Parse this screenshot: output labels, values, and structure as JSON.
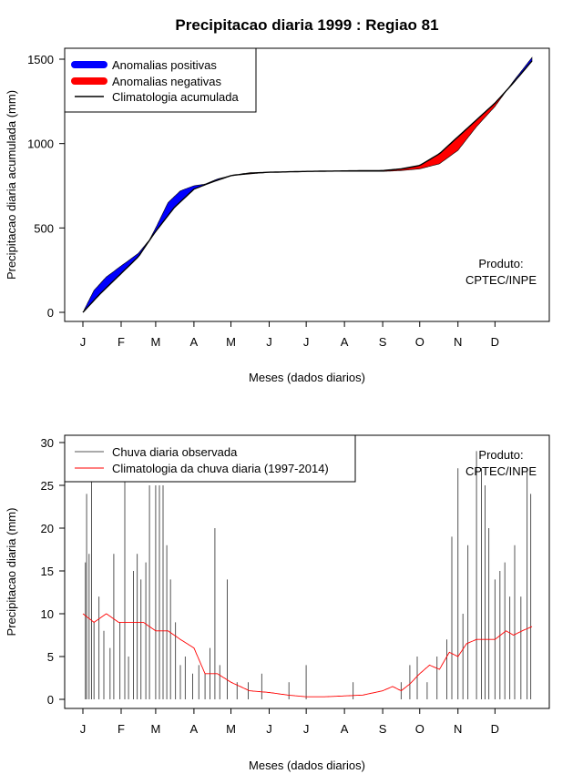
{
  "title": "Precipitacao diaria 1999 : Regiao 81",
  "chart_data": [
    {
      "type": "area",
      "name": "accumulated",
      "ylabel": "Precipitacao diaria acumulada (mm)",
      "xlabel": "Meses (dados diarios)",
      "xlim": [
        1,
        365
      ],
      "ylim": [
        0,
        1500
      ],
      "yticks": [
        0,
        500,
        1000,
        1500
      ],
      "month_ticks": [
        "J",
        "F",
        "M",
        "A",
        "M",
        "J",
        "J",
        "A",
        "S",
        "O",
        "N",
        "D"
      ],
      "month_start_days": [
        1,
        32,
        60,
        91,
        121,
        152,
        182,
        213,
        244,
        274,
        305,
        335
      ],
      "legend": {
        "position": "top-left",
        "entries": [
          "Anomalias positivas",
          "Anomalias negativas",
          "Climatologia acumulada"
        ]
      },
      "colors": {
        "positive": "#0000ff",
        "negative": "#ff0000",
        "climatology": "#000000"
      },
      "annotation": [
        "Produto:",
        "CPTEC/INPE"
      ],
      "climatology_points": [
        [
          1,
          0
        ],
        [
          15,
          110
        ],
        [
          32,
          230
        ],
        [
          46,
          330
        ],
        [
          60,
          480
        ],
        [
          75,
          620
        ],
        [
          91,
          730
        ],
        [
          105,
          770
        ],
        [
          121,
          810
        ],
        [
          136,
          825
        ],
        [
          152,
          830
        ],
        [
          182,
          835
        ],
        [
          213,
          838
        ],
        [
          244,
          840
        ],
        [
          259,
          850
        ],
        [
          274,
          870
        ],
        [
          290,
          940
        ],
        [
          305,
          1040
        ],
        [
          320,
          1140
        ],
        [
          335,
          1240
        ],
        [
          350,
          1360
        ],
        [
          365,
          1490
        ]
      ],
      "observed_points": [
        [
          1,
          0
        ],
        [
          10,
          130
        ],
        [
          20,
          210
        ],
        [
          32,
          275
        ],
        [
          46,
          350
        ],
        [
          55,
          430
        ],
        [
          60,
          500
        ],
        [
          70,
          650
        ],
        [
          80,
          720
        ],
        [
          91,
          750
        ],
        [
          100,
          760
        ],
        [
          110,
          790
        ],
        [
          121,
          810
        ],
        [
          152,
          830
        ],
        [
          182,
          835
        ],
        [
          213,
          835
        ],
        [
          244,
          835
        ],
        [
          259,
          840
        ],
        [
          274,
          850
        ],
        [
          290,
          880
        ],
        [
          305,
          960
        ],
        [
          320,
          1100
        ],
        [
          335,
          1220
        ],
        [
          350,
          1370
        ],
        [
          365,
          1510
        ]
      ]
    },
    {
      "type": "bar",
      "name": "daily",
      "ylabel": "Precipitacao diaria (mm)",
      "xlabel": "Meses (dados diarios)",
      "xlim": [
        1,
        365
      ],
      "ylim": [
        0,
        30
      ],
      "yticks": [
        0,
        5,
        10,
        15,
        20,
        25,
        30
      ],
      "month_ticks": [
        "J",
        "F",
        "M",
        "A",
        "M",
        "J",
        "J",
        "A",
        "S",
        "O",
        "N",
        "D"
      ],
      "month_start_days": [
        1,
        32,
        60,
        91,
        121,
        152,
        182,
        213,
        244,
        274,
        305,
        335
      ],
      "legend": {
        "position": "top-left",
        "entries": [
          "Chuva diaria observada",
          "Climatologia da chuva diaria (1997-2014)"
        ]
      },
      "colors": {
        "observed": "#555555",
        "climatology": "#ff0000"
      },
      "annotation": [
        "Produto:",
        "CPTEC/INPE"
      ],
      "observed_peaks": [
        [
          3,
          16
        ],
        [
          4,
          24
        ],
        [
          6,
          17
        ],
        [
          8,
          28
        ],
        [
          10,
          9
        ],
        [
          14,
          12
        ],
        [
          18,
          8
        ],
        [
          23,
          6
        ],
        [
          26,
          17
        ],
        [
          31,
          9
        ],
        [
          35,
          28
        ],
        [
          38,
          5
        ],
        [
          42,
          15
        ],
        [
          45,
          17
        ],
        [
          48,
          14
        ],
        [
          52,
          16
        ],
        [
          55,
          25
        ],
        [
          60,
          25
        ],
        [
          63,
          25
        ],
        [
          66,
          25
        ],
        [
          69,
          18
        ],
        [
          72,
          14
        ],
        [
          76,
          9
        ],
        [
          80,
          4
        ],
        [
          84,
          5
        ],
        [
          90,
          3
        ],
        [
          95,
          4
        ],
        [
          100,
          3
        ],
        [
          104,
          6
        ],
        [
          108,
          20
        ],
        [
          112,
          4
        ],
        [
          118,
          14
        ],
        [
          126,
          2
        ],
        [
          135,
          2
        ],
        [
          146,
          3
        ],
        [
          168,
          2
        ],
        [
          182,
          4
        ],
        [
          220,
          2
        ],
        [
          259,
          2
        ],
        [
          266,
          4
        ],
        [
          272,
          5
        ],
        [
          280,
          2
        ],
        [
          288,
          5
        ],
        [
          296,
          7
        ],
        [
          300,
          19
        ],
        [
          305,
          27
        ],
        [
          309,
          10
        ],
        [
          313,
          18
        ],
        [
          320,
          29
        ],
        [
          324,
          27
        ],
        [
          327,
          25
        ],
        [
          330,
          20
        ],
        [
          335,
          14
        ],
        [
          339,
          15
        ],
        [
          343,
          16
        ],
        [
          347,
          12
        ],
        [
          351,
          18
        ],
        [
          356,
          12
        ],
        [
          361,
          27
        ],
        [
          364,
          24
        ]
      ],
      "climatology_points": [
        [
          1,
          10
        ],
        [
          10,
          9
        ],
        [
          20,
          10
        ],
        [
          30,
          9
        ],
        [
          40,
          9
        ],
        [
          50,
          9
        ],
        [
          60,
          8
        ],
        [
          70,
          8
        ],
        [
          80,
          7
        ],
        [
          91,
          6
        ],
        [
          100,
          3
        ],
        [
          110,
          3
        ],
        [
          121,
          2
        ],
        [
          136,
          1
        ],
        [
          152,
          0.8
        ],
        [
          167,
          0.5
        ],
        [
          182,
          0.3
        ],
        [
          197,
          0.3
        ],
        [
          213,
          0.4
        ],
        [
          228,
          0.5
        ],
        [
          244,
          1
        ],
        [
          252,
          1.5
        ],
        [
          259,
          1
        ],
        [
          266,
          1.8
        ],
        [
          274,
          3
        ],
        [
          282,
          4
        ],
        [
          290,
          3.5
        ],
        [
          298,
          5.5
        ],
        [
          305,
          5
        ],
        [
          312,
          6.5
        ],
        [
          320,
          7
        ],
        [
          335,
          7
        ],
        [
          344,
          8
        ],
        [
          350,
          7.5
        ],
        [
          357,
          8
        ],
        [
          365,
          8.5
        ]
      ]
    }
  ]
}
